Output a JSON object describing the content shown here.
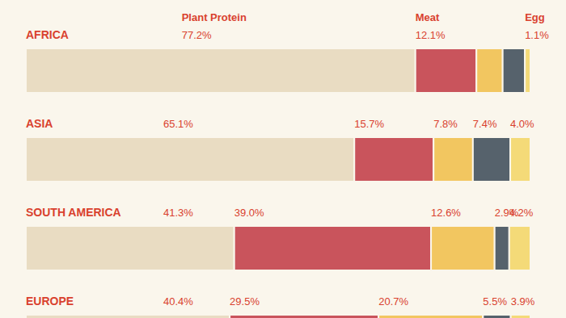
{
  "chart_data": {
    "type": "bar",
    "orientation": "horizontal",
    "stacked": true,
    "data_labels": true,
    "tick_labels": false,
    "xlim": [
      0,
      100
    ],
    "categories": [
      "AFRICA",
      "ASIA",
      "SOUTH AMERICA",
      "EUROPE"
    ],
    "series": [
      {
        "name": "Plant Protein",
        "color": "#e9dcc2",
        "values": [
          77.2,
          65.1,
          41.3,
          40.4
        ],
        "value_labels": [
          "77.2%",
          "65.1%",
          "41.3%",
          "40.4%"
        ]
      },
      {
        "name": "Meat",
        "color": "#c9545c",
        "values": [
          12.1,
          15.7,
          39.0,
          29.5
        ],
        "value_labels": [
          "12.1%",
          "15.7%",
          "39.0%",
          "29.5%"
        ]
      },
      {
        "color": "#f2c660",
        "values": [
          5.2,
          7.8,
          12.6,
          20.7
        ],
        "value_labels": [
          null,
          "7.8%",
          "12.6%",
          "20.7%"
        ]
      },
      {
        "color": "#56626c",
        "values": [
          4.4,
          7.4,
          2.9,
          5.5
        ],
        "value_labels": [
          null,
          "7.4%",
          "2.9%",
          "5.5%"
        ]
      },
      {
        "name": "Egg",
        "color": "#f4da78",
        "values": [
          1.1,
          4.0,
          4.2,
          3.9
        ],
        "value_labels": [
          "1.1%",
          "4.0%",
          "4.2%",
          "3.9%"
        ]
      }
    ]
  }
}
